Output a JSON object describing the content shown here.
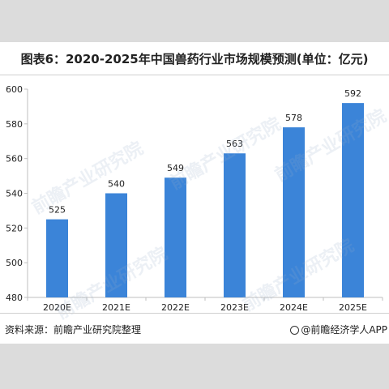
{
  "header": {
    "title": "图表6：2020-2025年中国兽药行业市场规模预测(单位：亿元)"
  },
  "footer": {
    "source": "资料来源：前瞻产业研究院整理",
    "brand": "@前瞻经济学人APP",
    "brand_icon": "target-icon"
  },
  "watermark": {
    "text": "前瞻产业研究院"
  },
  "colors": {
    "bar": "#3b84d8",
    "axis": "#bfbfbf",
    "text": "#222222"
  },
  "chart_data": {
    "type": "bar",
    "title": "图表6：2020-2025年中国兽药行业市场规模预测(单位：亿元)",
    "categories": [
      "2020E",
      "2021E",
      "2022E",
      "2023E",
      "2024E",
      "2025E"
    ],
    "values": [
      525,
      540,
      549,
      563,
      578,
      592
    ],
    "data_labels": [
      "525",
      "540",
      "549",
      "563",
      "578",
      "592"
    ],
    "ylim": [
      480,
      600
    ],
    "yticks": [
      480,
      500,
      520,
      540,
      560,
      580,
      600
    ],
    "ytick_labels": [
      "480",
      "500",
      "520",
      "540",
      "560",
      "580",
      "600"
    ],
    "xlabel": "",
    "ylabel": "",
    "grid": false,
    "legend": "none"
  }
}
